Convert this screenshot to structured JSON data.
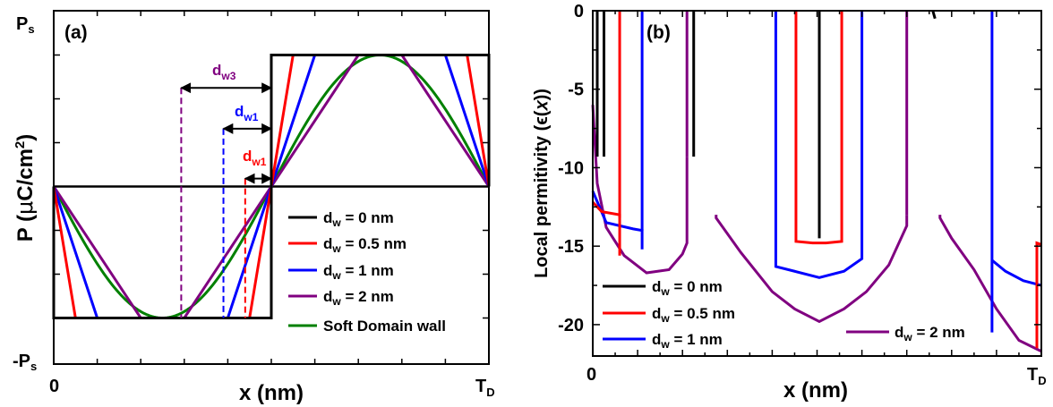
{
  "chart_data": [
    {
      "type": "line",
      "panel_label": "(a)",
      "xlabel": "x (nm)",
      "ylabel": "P (μC/cm²)",
      "x_ticks": [
        "0",
        "T_D"
      ],
      "y_ticks_top": "P_s",
      "y_ticks_bottom": "-P_s",
      "xlim": [
        0,
        1
      ],
      "ylim": [
        -1.2,
        1.2
      ],
      "legend_position": "lower-right",
      "colors": {
        "dw0": "#000000",
        "dw05": "#ff0000",
        "dw1": "#0000ff",
        "dw2": "#800080",
        "soft": "#008000"
      },
      "series": [
        {
          "name": "d_w = 0 nm",
          "color": "#000000",
          "x": [
            0,
            0,
            0.5,
            0.5,
            1,
            1
          ],
          "y": [
            0,
            -1,
            -1,
            1,
            1,
            0
          ]
        },
        {
          "name": "d_w = 0.5 nm",
          "color": "#ff0000",
          "x": [
            0,
            0.05,
            0.45,
            0.55,
            0.95,
            1
          ],
          "y": [
            0,
            -1,
            -1,
            1,
            1,
            0
          ]
        },
        {
          "name": "d_w = 1 nm",
          "color": "#0000ff",
          "x": [
            0,
            0.1,
            0.4,
            0.6,
            0.9,
            1
          ],
          "y": [
            0,
            -1,
            -1,
            1,
            1,
            0
          ]
        },
        {
          "name": "d_w = 2 nm",
          "color": "#800080",
          "x": [
            0,
            0.2,
            0.3,
            0.7,
            0.8,
            1
          ],
          "y": [
            0,
            -1,
            -1,
            1,
            1,
            0
          ]
        },
        {
          "name": "Soft Domain wall",
          "color": "#008000",
          "function": "-sin(2*pi*x)"
        }
      ],
      "annotations": [
        {
          "text": "d",
          "sub": "w3",
          "color": "#800080",
          "x_from": 0.293,
          "x_to": 0.5,
          "y": 0.75
        },
        {
          "text": "d",
          "sub": "w1",
          "color": "#0000ff",
          "x_from": 0.39,
          "x_to": 0.5,
          "y": 0.44
        },
        {
          "text": "d",
          "sub": "w1",
          "color": "#ff0000",
          "x_from": 0.44,
          "x_to": 0.5,
          "y": 0.06
        }
      ]
    },
    {
      "type": "line",
      "panel_label": "(b)",
      "xlabel": "x (nm)",
      "ylabel": "Local permitivity (ϵ(𝑥))",
      "x_ticks": [
        "0",
        "T_D"
      ],
      "y_ticks": [
        0,
        -5,
        -10,
        -15,
        -20
      ],
      "xlim": [
        0,
        1
      ],
      "ylim": [
        -22,
        0
      ],
      "legend_position": "lower-left",
      "series": [
        {
          "name": "d_w = 0 nm",
          "color": "#000000",
          "segments": [
            {
              "x": [
                0.01,
                0.01
              ],
              "y": [
                0,
                -9.3
              ]
            },
            {
              "x": [
                0.025,
                0.025
              ],
              "y": [
                0,
                -9.3
              ]
            },
            {
              "x": [
                0.225,
                0.225
              ],
              "y": [
                0,
                -9.3
              ]
            },
            {
              "x": [
                0.505,
                0.505
              ],
              "y": [
                0,
                -14.5
              ]
            },
            {
              "x": [
                0.758,
                0.763
              ],
              "y": [
                0,
                -0.5
              ]
            }
          ]
        },
        {
          "name": "d_w = 0.5 nm",
          "color": "#ff0000",
          "segments": [
            {
              "x": [
                0.0,
                0.02,
                0.06,
                0.06
              ],
              "y": [
                -12.2,
                -12.8,
                -13.0,
                -15.6
              ]
            },
            {
              "x": [
                0.06,
                0.06
              ],
              "y": [
                -13.2,
                0
              ]
            },
            {
              "x": [
                0.453,
                0.453,
                0.49,
                0.52,
                0.555,
                0.555
              ],
              "y": [
                0,
                -14.7,
                -14.8,
                -14.8,
                -14.7,
                0
              ]
            },
            {
              "x": [
                0.99,
                0.99,
                1.0
              ],
              "y": [
                -21.5,
                -14.8,
                -14.9
              ]
            }
          ]
        },
        {
          "name": "d_w = 1 nm",
          "color": "#0000ff",
          "segments": [
            {
              "x": [
                0.0,
                0.03,
                0.09,
                0.11,
                0.11
              ],
              "y": [
                -11.5,
                -13.5,
                -13.9,
                -14.0,
                -15.2
              ]
            },
            {
              "x": [
                0.11,
                0.11
              ],
              "y": [
                -14.0,
                0
              ]
            },
            {
              "x": [
                0.408,
                0.408,
                0.45,
                0.505,
                0.56,
                0.6,
                0.6
              ],
              "y": [
                0,
                -16.3,
                -16.6,
                -17.0,
                -16.6,
                -15.8,
                0
              ]
            },
            {
              "x": [
                0.89,
                0.89
              ],
              "y": [
                0,
                -20.5
              ]
            },
            {
              "x": [
                0.89,
                0.92,
                0.96,
                1.0
              ],
              "y": [
                -15.9,
                -16.6,
                -17.2,
                -17.5
              ]
            }
          ]
        },
        {
          "name": "d_w = 2 nm",
          "color": "#800080",
          "segments": [
            {
              "x": [
                0.0,
                0.01,
                0.03,
                0.07,
                0.12,
                0.17,
                0.2,
                0.21,
                0.21
              ],
              "y": [
                -6.0,
                -11.0,
                -13.8,
                -15.6,
                -16.7,
                -16.5,
                -15.5,
                -14.8,
                -9.3
              ]
            },
            {
              "x": [
                0.21,
                0.21
              ],
              "y": [
                0,
                -9.3
              ]
            },
            {
              "x": [
                0.275,
                0.275,
                0.33,
                0.4,
                0.45,
                0.505,
                0.56,
                0.61,
                0.66,
                0.7,
                0.7
              ],
              "y": [
                -13.0,
                -13.2,
                -15.4,
                -17.9,
                -19.0,
                -19.8,
                -19.0,
                -17.9,
                -16.2,
                -13.7,
                -13.0
              ]
            },
            {
              "x": [
                0.7,
                0.7
              ],
              "y": [
                -13.0,
                0
              ]
            },
            {
              "x": [
                0.774,
                0.774,
                0.8,
                0.85,
                0.9,
                0.95,
                1.0
              ],
              "y": [
                -13.0,
                -13.2,
                -14.5,
                -16.5,
                -19.0,
                -21.0,
                -21.7
              ]
            }
          ]
        }
      ]
    }
  ],
  "panel_a": {
    "label": "(a)",
    "xlabel": "x (nm)",
    "ylabel_main": "P (",
    "ylabel_mu": "μ",
    "ylabel_rest": "C/cm",
    "ylabel_sup": "2",
    "ylabel_close": ")",
    "tick_x0": "0",
    "tick_xT": "T",
    "tick_xT_sub": "D",
    "tick_Ps": "P",
    "tick_Ps_sub": "s",
    "tick_mPs": "-P",
    "tick_mPs_sub": "s",
    "legend": [
      {
        "d": "d",
        "sub": "w",
        "rest": " = 0 nm",
        "color": "#000000"
      },
      {
        "d": "d",
        "sub": "w",
        "rest": " = 0.5 nm",
        "color": "#ff0000"
      },
      {
        "d": "d",
        "sub": "w",
        "rest": " = 1 nm",
        "color": "#0000ff"
      },
      {
        "d": "d",
        "sub": "w",
        "rest": " = 2 nm",
        "color": "#800080"
      },
      {
        "text": "Soft Domain wall",
        "color": "#008000"
      }
    ],
    "anno_w3": {
      "d": "d",
      "sub": "w3"
    },
    "anno_w1_blue": {
      "d": "d",
      "sub": "w1"
    },
    "anno_w1_red": {
      "d": "d",
      "sub": "w1"
    }
  },
  "panel_b": {
    "label": "(b)",
    "xlabel": "x (nm)",
    "ylabel": "Local permitivity (ϵ(𝑥))",
    "tick_x0": "0",
    "tick_xT": "T",
    "tick_xT_sub": "D",
    "y_ticks": [
      "0",
      "-5",
      "-10",
      "-15",
      "-20"
    ],
    "legend": [
      {
        "d": "d",
        "sub": "w",
        "rest": " = 0 nm",
        "color": "#000000"
      },
      {
        "d": "d",
        "sub": "w",
        "rest": " = 0.5 nm",
        "color": "#ff0000"
      },
      {
        "d": "d",
        "sub": "w",
        "rest": " = 1 nm",
        "color": "#0000ff"
      }
    ],
    "legend_extra": {
      "d": "d",
      "sub": "w",
      "rest": " = 2 nm",
      "color": "#800080"
    }
  }
}
